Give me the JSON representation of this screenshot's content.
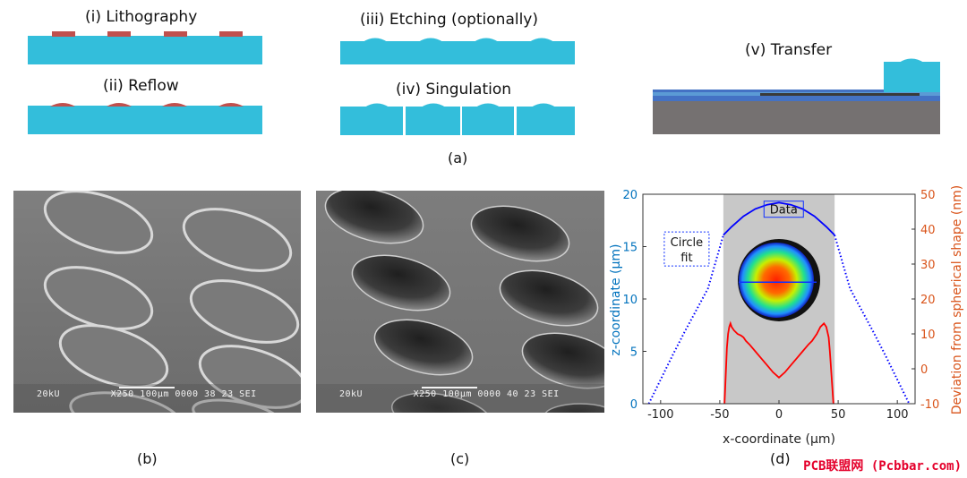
{
  "panel_a": {
    "steps": [
      {
        "label": "(i) Lithography"
      },
      {
        "label": "(ii) Reflow"
      },
      {
        "label": "(iii) Etching (optionally)"
      },
      {
        "label": "(iv) Singulation"
      },
      {
        "label": "(v) Transfer"
      }
    ],
    "letter": "(a)",
    "colors": {
      "substrate": "#33bedb",
      "resist": "#c0504d",
      "base": "#757171",
      "blue_layer": "#4472c4"
    }
  },
  "panel_b": {
    "letter": "(b)",
    "sem_text": {
      "kv": "20kU",
      "mag": "X250",
      "scale": "100",
      "scale_unit": "μm",
      "info": "0000 38 23 SEI"
    }
  },
  "panel_c": {
    "letter": "(c)",
    "sem_text": {
      "kv": "20kU",
      "mag": "X250",
      "scale": "100",
      "scale_unit": "μm",
      "info": "0000 40 23 SEI"
    }
  },
  "panel_d": {
    "letter": "(d)",
    "annotations": {
      "data": "Data",
      "circle_fit_1": "Circle",
      "circle_fit_2": "fit"
    },
    "chart_data": {
      "type": "line",
      "xlabel": "x-coordinate (μm)",
      "ylabel_left": "z-coordinate (μm)",
      "ylabel_right": "Deviation from spherical shape (nm)",
      "xlim": [
        -115,
        115
      ],
      "ylim_left": [
        0,
        20
      ],
      "ylim_right": [
        -10,
        50
      ],
      "x_ticks": [
        -100,
        -50,
        0,
        50,
        100
      ],
      "y_ticks_left": [
        0,
        5,
        10,
        15,
        20
      ],
      "y_ticks_right": [
        -10,
        0,
        10,
        20,
        30,
        40,
        50
      ],
      "data_region": [
        -47,
        47
      ],
      "colors": {
        "left_axis": "#0072bd",
        "right_axis": "#d95319",
        "fit": "#0000ff",
        "deviation": "#ff0000",
        "region": "#c8c8c8"
      },
      "series": [
        {
          "label_key": "data",
          "axis": "left",
          "style": "solid",
          "x": [
            -47,
            -40,
            -30,
            -20,
            -10,
            0,
            10,
            20,
            30,
            40,
            47
          ],
          "y": [
            16.1,
            16.9,
            17.9,
            18.6,
            19.0,
            19.2,
            19.0,
            18.6,
            17.9,
            16.9,
            16.1
          ]
        },
        {
          "label_key": "circle_fit",
          "axis": "left",
          "style": "dotted",
          "x": [
            -110,
            -100,
            -90,
            -80,
            -70,
            -60,
            -47,
            47,
            60,
            70,
            80,
            90,
            100,
            110
          ],
          "y": [
            0,
            2.3,
            4.6,
            6.8,
            8.9,
            11.0,
            16.1,
            16.1,
            11.0,
            8.9,
            6.8,
            4.6,
            2.3,
            0
          ]
        },
        {
          "label_key": "deviation",
          "axis": "right",
          "style": "solid",
          "x": [
            -46,
            -45,
            -44,
            -43,
            -42,
            -41,
            -40,
            -38,
            -35,
            -32,
            -30,
            -28,
            -25,
            -20,
            -15,
            -10,
            -5,
            0,
            5,
            10,
            15,
            20,
            25,
            28,
            30,
            32,
            35,
            38,
            40,
            42,
            43,
            44,
            45,
            46
          ],
          "y": [
            -10,
            -2,
            6,
            10,
            12,
            13,
            12,
            11,
            10,
            9.5,
            9,
            8,
            7,
            5,
            3,
            1,
            -1,
            -2.5,
            -1,
            1,
            3,
            5,
            7,
            8,
            9,
            10,
            12,
            13,
            12,
            9,
            5,
            0,
            -5,
            -10
          ]
        }
      ]
    }
  },
  "watermark": "PCB联盟网 (Pcbbar.com)"
}
